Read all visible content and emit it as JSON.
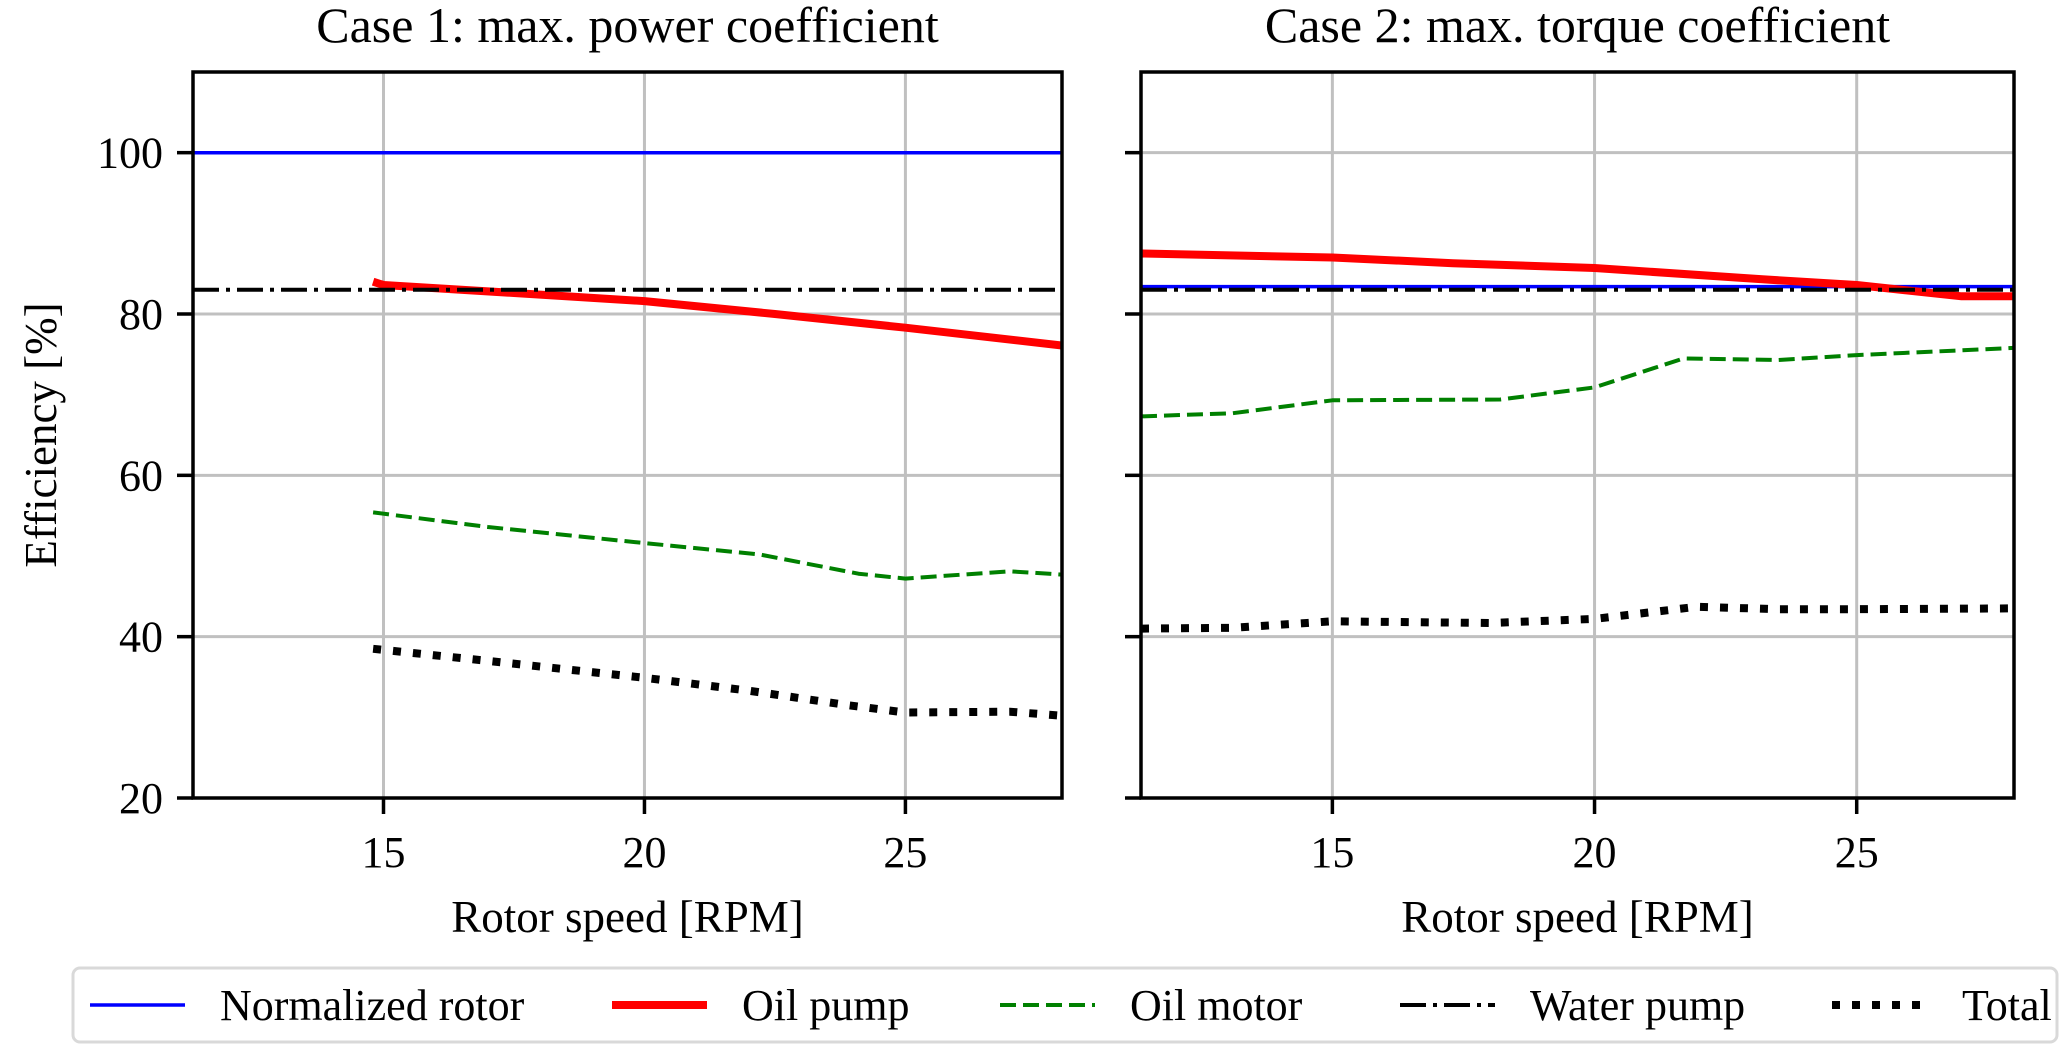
{
  "chart_data": [
    {
      "type": "line",
      "title": "Case 1: max. power coefficient",
      "xlabel": "Rotor speed [RPM]",
      "ylabel": "Efficiency [%]",
      "xlim": [
        11.35,
        28.0
      ],
      "ylim": [
        20,
        110
      ],
      "xticks": [
        15,
        20,
        25
      ],
      "yticks": [
        20,
        40,
        60,
        80,
        100
      ],
      "ytick_labels_visible": true,
      "grid": true,
      "series": [
        {
          "name": "Normalized rotor",
          "x": [
            11.35,
            28.0
          ],
          "y": [
            100,
            100
          ]
        },
        {
          "name": "Oil pump",
          "x": [
            14.8,
            15,
            17.5,
            20,
            22.5,
            25,
            28.0
          ],
          "y": [
            84.0,
            83.6,
            82.6,
            81.6,
            80.0,
            78.3,
            76.1
          ]
        },
        {
          "name": "Oil motor",
          "x": [
            14.8,
            17,
            20,
            22.2,
            24.1,
            25,
            27.0,
            28.0
          ],
          "y": [
            55.4,
            53.6,
            51.6,
            50.2,
            47.8,
            47.2,
            48.1,
            47.7
          ]
        },
        {
          "name": "Water pump",
          "x": [
            11.35,
            28.0
          ],
          "y": [
            83,
            83
          ]
        },
        {
          "name": "Total",
          "x": [
            14.8,
            17,
            20,
            22,
            23.9,
            25,
            27.0,
            28.0
          ],
          "y": [
            38.5,
            37.0,
            34.9,
            33.3,
            31.5,
            30.6,
            30.7,
            30.2
          ]
        }
      ]
    },
    {
      "type": "line",
      "title": "Case 2: max. torque coefficient",
      "xlabel": "Rotor speed [RPM]",
      "ylabel": "",
      "xlim": [
        11.35,
        28.0
      ],
      "ylim": [
        20,
        110
      ],
      "xticks": [
        15,
        20,
        25
      ],
      "yticks": [
        20,
        40,
        60,
        80,
        100
      ],
      "ytick_labels_visible": false,
      "grid": true,
      "series": [
        {
          "name": "Normalized rotor",
          "x": [
            11.35,
            28.0
          ],
          "y": [
            83.4,
            83.4
          ]
        },
        {
          "name": "Oil pump",
          "x": [
            11.35,
            15,
            17.3,
            20,
            23.2,
            25,
            27.0,
            28.0
          ],
          "y": [
            87.5,
            87.0,
            86.3,
            85.7,
            84.3,
            83.6,
            82.2,
            82.2
          ]
        },
        {
          "name": "Oil motor",
          "x": [
            11.35,
            13.1,
            15,
            18.2,
            20,
            21.7,
            23.5,
            25,
            28.0
          ],
          "y": [
            67.3,
            67.7,
            69.3,
            69.4,
            70.9,
            74.5,
            74.3,
            74.9,
            75.8
          ]
        },
        {
          "name": "Water pump",
          "x": [
            11.35,
            28.0
          ],
          "y": [
            83,
            83
          ]
        },
        {
          "name": "Total",
          "x": [
            11.35,
            13.1,
            15,
            18.0,
            20,
            21.95,
            23.5,
            25,
            28.0
          ],
          "y": [
            41.0,
            41.1,
            41.9,
            41.7,
            42.2,
            43.7,
            43.4,
            43.4,
            43.5
          ]
        }
      ]
    }
  ],
  "legend": {
    "placement": "bottom-center",
    "entries": [
      {
        "name": "Normalized rotor",
        "color": "#0000ff",
        "style": "solid"
      },
      {
        "name": "Oil pump",
        "color": "#ff0000",
        "style": "solid-thick"
      },
      {
        "name": "Oil motor",
        "color": "#008000",
        "style": "dashed"
      },
      {
        "name": "Water pump",
        "color": "#000000",
        "style": "dashdot"
      },
      {
        "name": "Total",
        "color": "#000000",
        "style": "dotted"
      }
    ]
  },
  "series_styles": {
    "Normalized rotor": {
      "color": "#0000ff"
    },
    "Oil pump": {
      "color": "#ff0000"
    },
    "Oil motor": {
      "color": "#008000"
    },
    "Water pump": {
      "color": "#000000"
    },
    "Total": {
      "color": "#000000"
    }
  }
}
